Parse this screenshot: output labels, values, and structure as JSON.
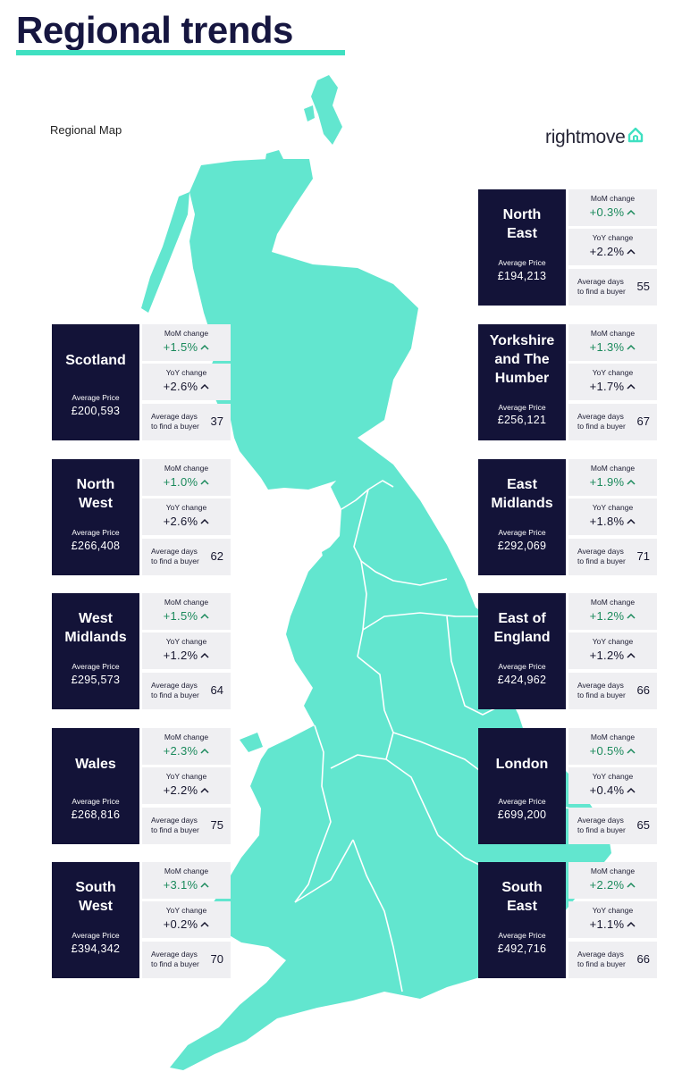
{
  "header": {
    "title": "Regional trends"
  },
  "map": {
    "label": "Regional Map",
    "land_color": "#62e6cf",
    "border_color": "#ffffff"
  },
  "brand": {
    "name": "rightmove",
    "icon": "house-icon",
    "accent": "#3fe0c1"
  },
  "colors": {
    "card_dark": "#131338",
    "stat_bg": "#efeff2",
    "positive_green": "#1b8a5c"
  },
  "labels": {
    "average_price": "Average Price",
    "mom_change": "MoM change",
    "yoy_change": "YoY change",
    "days_to_buyer": "Average days\nto find a buyer",
    "arrow": "up-arrow-icon"
  },
  "regions": [
    {
      "name": "Scotland",
      "price": "£200,593",
      "mom": "+1.5%",
      "yoy": "+2.6%",
      "days": "37"
    },
    {
      "name": "North\nWest",
      "price": "£266,408",
      "mom": "+1.0%",
      "yoy": "+2.6%",
      "days": "62"
    },
    {
      "name": "West\nMidlands",
      "price": "£295,573",
      "mom": "+1.5%",
      "yoy": "+1.2%",
      "days": "64"
    },
    {
      "name": "Wales",
      "price": "£268,816",
      "mom": "+2.3%",
      "yoy": "+2.2%",
      "days": "75"
    },
    {
      "name": "South\nWest",
      "price": "£394,342",
      "mom": "+3.1%",
      "yoy": "+0.2%",
      "days": "70"
    },
    {
      "name": "North\nEast",
      "price": "£194,213",
      "mom": "+0.3%",
      "yoy": "+2.2%",
      "days": "55"
    },
    {
      "name": "Yorkshire\nand The\nHumber",
      "price": "£256,121",
      "mom": "+1.3%",
      "yoy": "+1.7%",
      "days": "67"
    },
    {
      "name": "East\nMidlands",
      "price": "£292,069",
      "mom": "+1.9%",
      "yoy": "+1.8%",
      "days": "71"
    },
    {
      "name": "East of\nEngland",
      "price": "£424,962",
      "mom": "+1.2%",
      "yoy": "+1.2%",
      "days": "66"
    },
    {
      "name": "London",
      "price": "£699,200",
      "mom": "+0.5%",
      "yoy": "+0.4%",
      "days": "65"
    },
    {
      "name": "South\nEast",
      "price": "£492,716",
      "mom": "+2.2%",
      "yoy": "+1.1%",
      "days": "66"
    }
  ]
}
